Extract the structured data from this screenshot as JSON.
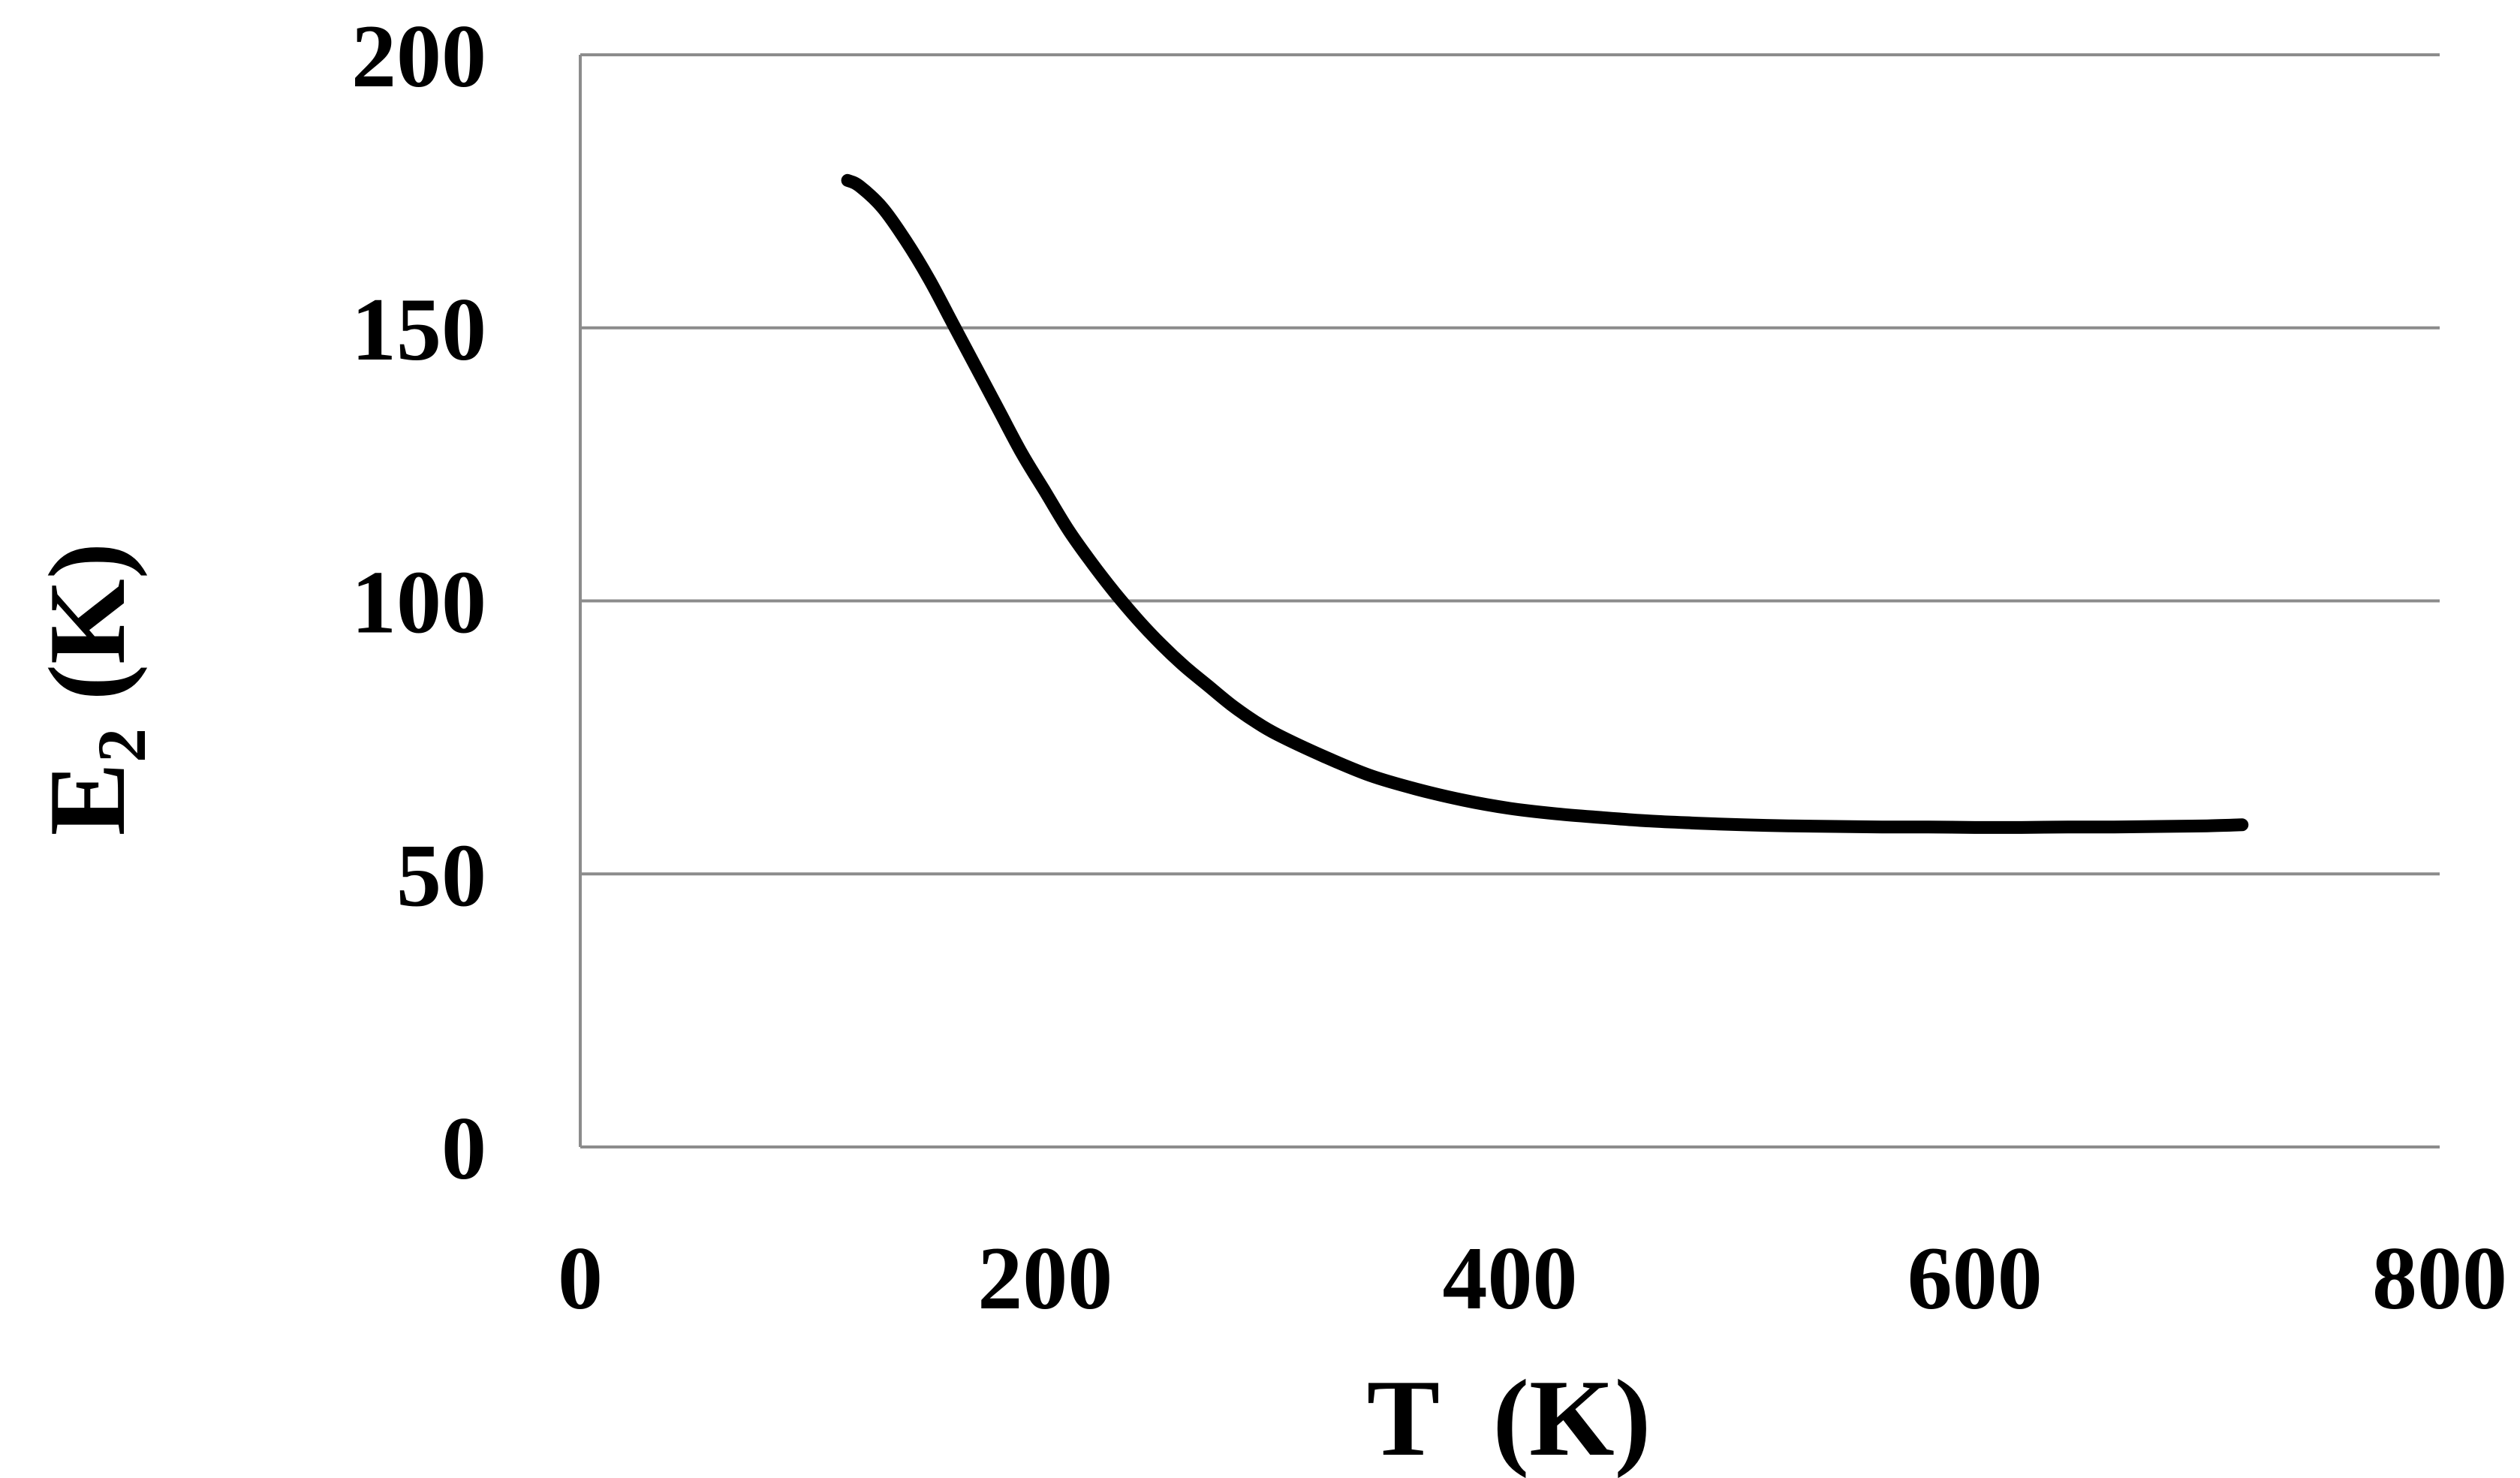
{
  "chart_data": {
    "type": "line",
    "title": "",
    "xlabel": "T  (K)",
    "ylabel": {
      "main": "E",
      "subscript": "2",
      "unit": " (K)"
    },
    "xlim": [
      0,
      800
    ],
    "ylim": [
      0,
      200
    ],
    "x_ticks": [
      0,
      200,
      400,
      600,
      800
    ],
    "y_ticks": [
      0,
      50,
      100,
      150,
      200
    ],
    "x_tick_labels": [
      "0",
      "200",
      "400",
      "600",
      "800"
    ],
    "y_tick_labels": [
      "0",
      "50",
      "100",
      "150",
      "200"
    ],
    "grid": "horizontal",
    "legend": "none",
    "series": [
      {
        "color": "#000000",
        "x": [
          115,
          120,
          130,
          140,
          150,
          160,
          170,
          180,
          190,
          200,
          210,
          220,
          230,
          240,
          250,
          260,
          270,
          280,
          290,
          300,
          320,
          340,
          360,
          380,
          400,
          420,
          440,
          460,
          480,
          500,
          520,
          540,
          560,
          580,
          600,
          620,
          640,
          660,
          680,
          700,
          715
        ],
        "y": [
          177,
          176,
          172,
          166,
          159,
          151,
          143,
          135,
          127,
          120,
          113,
          107,
          101.5,
          96.5,
          92,
          88,
          84.5,
          81,
          78,
          75.5,
          71.5,
          68,
          65.5,
          63.5,
          62,
          61,
          60.3,
          59.7,
          59.3,
          59,
          58.8,
          58.7,
          58.6,
          58.6,
          58.5,
          58.5,
          58.6,
          58.6,
          58.7,
          58.8,
          59
        ]
      }
    ]
  }
}
